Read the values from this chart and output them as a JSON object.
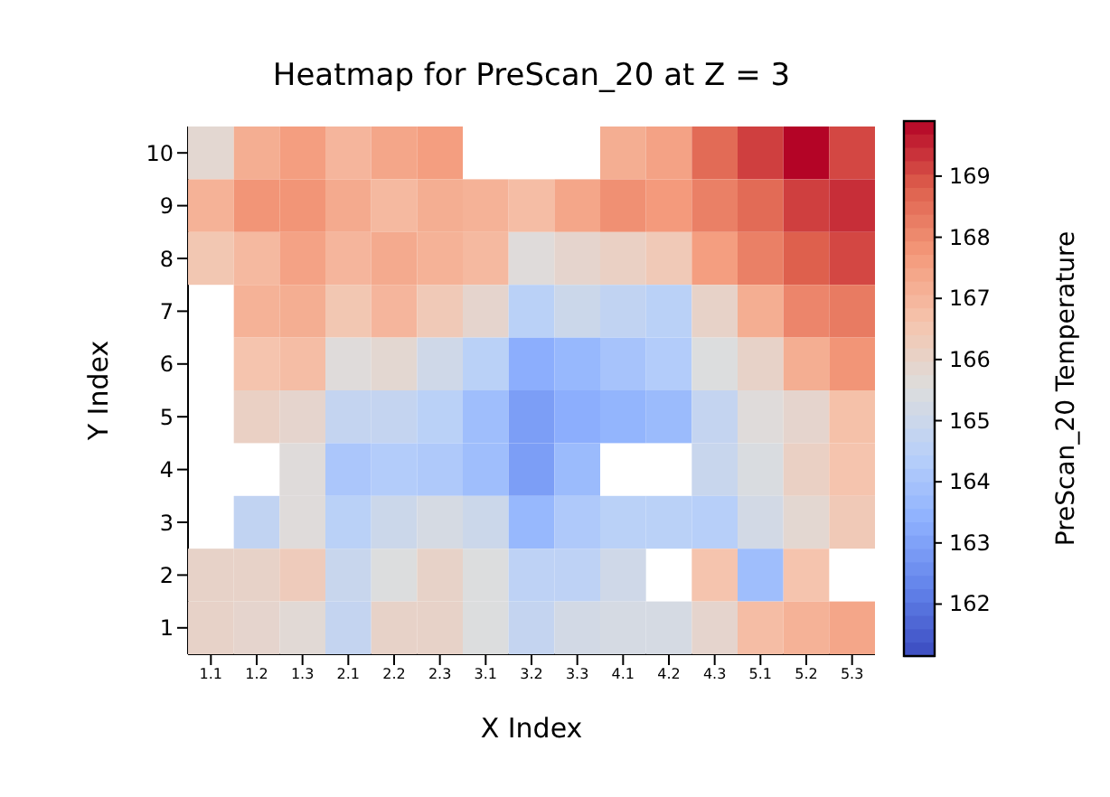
{
  "chart_data": {
    "type": "heatmap",
    "title": "Heatmap for PreScan_20 at Z = 3",
    "xlabel": "X Index",
    "ylabel": "Y Index",
    "clabel": "PreScan_20 Temperature",
    "categories": [
      "1.1",
      "1.2",
      "1.3",
      "2.1",
      "2.2",
      "2.3",
      "3.1",
      "3.2",
      "3.3",
      "4.1",
      "4.2",
      "4.3",
      "5.1",
      "5.2",
      "5.3"
    ],
    "y_categories": [
      "10",
      "9",
      "8",
      "7",
      "6",
      "5",
      "4",
      "3",
      "2",
      "1"
    ],
    "cells": [
      [
        165.8,
        167.2,
        167.6,
        167.0,
        167.4,
        167.6,
        null,
        null,
        null,
        167.2,
        167.5,
        168.6,
        169.2,
        169.9,
        169.1
      ],
      [
        167.1,
        167.8,
        167.8,
        167.3,
        166.9,
        167.2,
        167.1,
        166.8,
        167.4,
        167.9,
        167.7,
        168.2,
        168.6,
        169.2,
        169.4
      ],
      [
        166.5,
        166.9,
        167.5,
        167.0,
        167.3,
        167.1,
        166.9,
        165.6,
        165.9,
        166.1,
        166.4,
        167.6,
        168.2,
        168.8,
        169.1
      ],
      [
        null,
        167.1,
        167.2,
        166.5,
        167.0,
        166.4,
        165.9,
        164.5,
        165.0,
        164.7,
        164.5,
        166.0,
        167.2,
        168.1,
        168.3
      ],
      [
        null,
        166.6,
        166.8,
        165.6,
        165.8,
        165.1,
        164.5,
        163.3,
        163.6,
        164.0,
        164.3,
        165.5,
        166.0,
        167.2,
        167.8
      ],
      [
        null,
        166.1,
        165.9,
        164.8,
        164.8,
        164.5,
        163.8,
        162.9,
        163.3,
        163.5,
        163.7,
        164.8,
        165.6,
        165.9,
        166.7
      ],
      [
        null,
        null,
        165.6,
        164.1,
        164.3,
        164.2,
        163.8,
        162.9,
        163.7,
        null,
        null,
        164.9,
        165.4,
        166.1,
        166.6
      ],
      [
        null,
        164.7,
        165.6,
        164.5,
        165.0,
        165.3,
        165.0,
        163.6,
        164.2,
        164.5,
        164.5,
        164.4,
        165.2,
        165.8,
        166.4
      ],
      [
        166.0,
        166.0,
        166.3,
        164.9,
        165.5,
        166.0,
        165.5,
        164.6,
        164.6,
        165.1,
        null,
        166.6,
        163.8,
        166.6,
        null
      ],
      [
        166.0,
        165.9,
        165.7,
        164.8,
        166.0,
        166.0,
        165.5,
        164.8,
        165.2,
        165.3,
        165.3,
        165.9,
        166.8,
        167.1,
        167.4
      ]
    ],
    "clim": [
      161.15,
      169.9
    ],
    "cticks": [
      162,
      163,
      164,
      165,
      166,
      167,
      168,
      169
    ]
  }
}
